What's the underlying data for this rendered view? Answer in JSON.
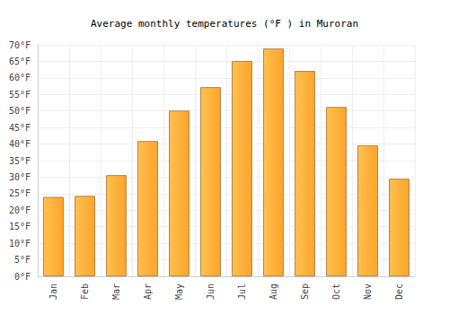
{
  "chart_data": {
    "type": "bar",
    "title": "Average monthly temperatures (°F ) in Muroran",
    "categories": [
      "Jan",
      "Feb",
      "Mar",
      "Apr",
      "May",
      "Jun",
      "Jul",
      "Aug",
      "Sep",
      "Oct",
      "Nov",
      "Dec"
    ],
    "values": [
      24,
      24.3,
      30.6,
      40.9,
      50.1,
      57.2,
      65.1,
      68.9,
      62.1,
      51.2,
      39.6,
      29.5
    ],
    "color": "#fda52b",
    "ylim": [
      0,
      70
    ],
    "yticks": [
      {
        "value": 0,
        "label": "0°F"
      },
      {
        "value": 5,
        "label": "5°F"
      },
      {
        "value": 10,
        "label": "10°F"
      },
      {
        "value": 15,
        "label": "15°F"
      },
      {
        "value": 20,
        "label": "20°F"
      },
      {
        "value": 25,
        "label": "25°F"
      },
      {
        "value": 30,
        "label": "30°F"
      },
      {
        "value": 35,
        "label": "35°F"
      },
      {
        "value": 40,
        "label": "40°F"
      },
      {
        "value": 45,
        "label": "45°F"
      },
      {
        "value": 50,
        "label": "50°F"
      },
      {
        "value": 55,
        "label": "55°F"
      },
      {
        "value": 60,
        "label": "60°F"
      },
      {
        "value": 65,
        "label": "65°F"
      },
      {
        "value": 70,
        "label": "70°F"
      }
    ],
    "grid": true
  }
}
